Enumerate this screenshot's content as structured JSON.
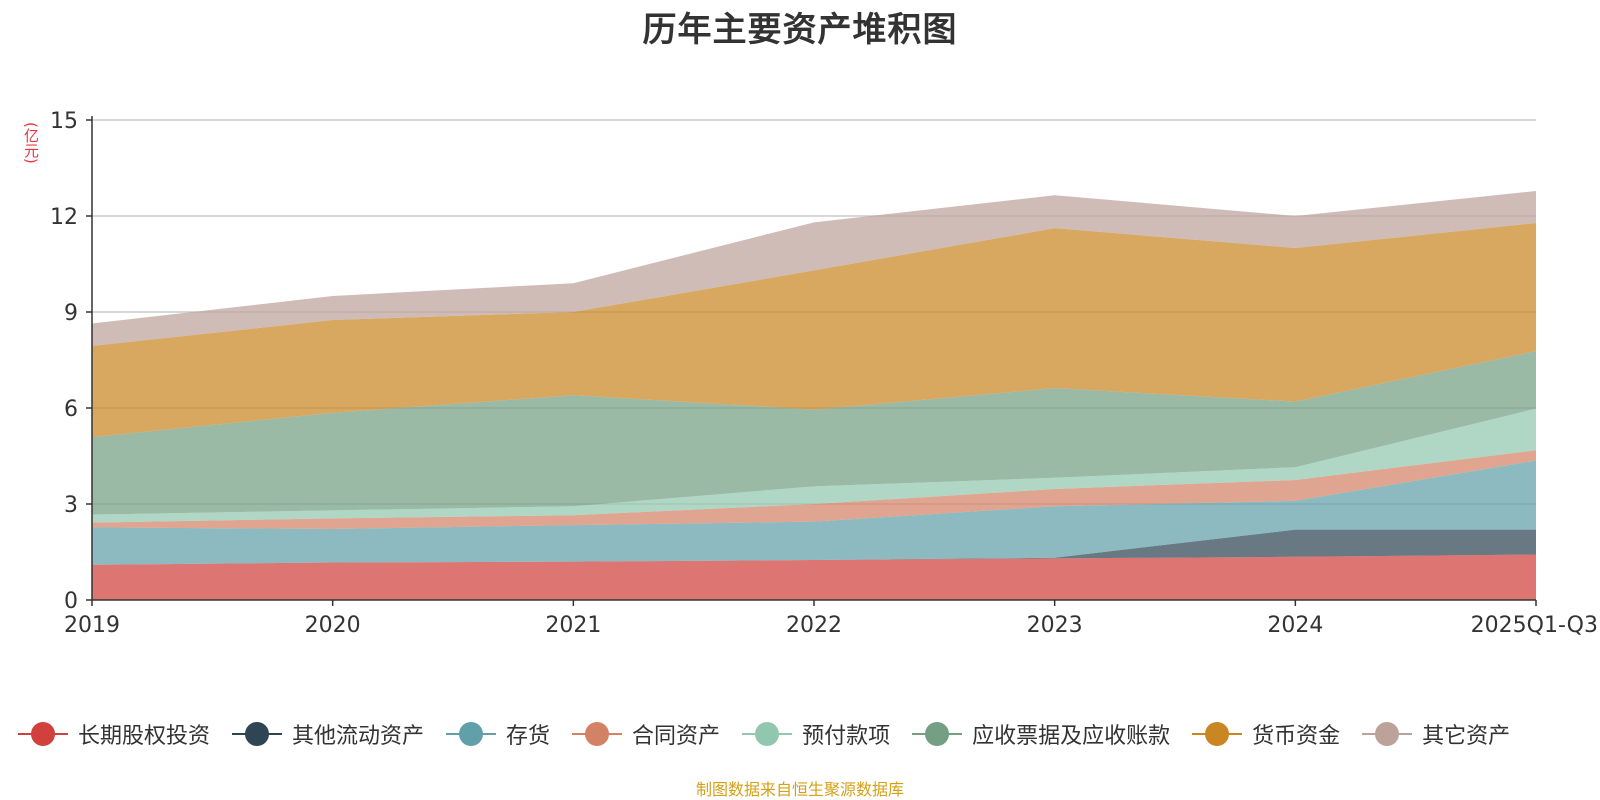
{
  "chart_data": {
    "type": "area",
    "stacked": true,
    "title": "历年主要资产堆积图",
    "ylabel": "(亿元)",
    "ylim": [
      0,
      15
    ],
    "yticks": [
      0,
      3,
      6,
      9,
      12,
      15
    ],
    "grid": true,
    "legend_position": "bottom",
    "categories": [
      "2019",
      "2020",
      "2021",
      "2022",
      "2023",
      "2024",
      "2025Q1-Q3"
    ],
    "series": [
      {
        "name": "长期股权投资",
        "color": "#d0403c",
        "values": [
          1.1,
          1.17,
          1.2,
          1.25,
          1.3,
          1.35,
          1.42
        ]
      },
      {
        "name": "其他流动资产",
        "color": "#2f4554",
        "values": [
          0.0,
          0.0,
          0.0,
          0.0,
          0.02,
          0.85,
          0.78
        ]
      },
      {
        "name": "存货",
        "color": "#61a0a8",
        "values": [
          1.17,
          1.05,
          1.14,
          1.2,
          1.61,
          0.9,
          2.16
        ]
      },
      {
        "name": "合同资产",
        "color": "#d48265",
        "values": [
          0.15,
          0.33,
          0.31,
          0.55,
          0.54,
          0.65,
          0.32
        ]
      },
      {
        "name": "预付款项",
        "color": "#91c7ae",
        "values": [
          0.25,
          0.25,
          0.28,
          0.55,
          0.35,
          0.4,
          1.3
        ]
      },
      {
        "name": "应收票据及应收账款",
        "color": "#749f83",
        "values": [
          2.42,
          3.05,
          3.47,
          2.4,
          2.8,
          2.05,
          1.8
        ]
      },
      {
        "name": "货币资金",
        "color": "#ca8622",
        "values": [
          2.85,
          2.9,
          2.6,
          4.35,
          5.0,
          4.8,
          4.0
        ]
      },
      {
        "name": "其它资产",
        "color": "#bda29a",
        "values": [
          0.7,
          0.75,
          0.9,
          1.5,
          1.03,
          1.0,
          1.0
        ]
      }
    ]
  },
  "source_note": "制图数据来自恒生聚源数据库"
}
